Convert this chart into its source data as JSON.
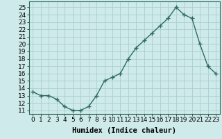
{
  "x": [
    0,
    1,
    2,
    3,
    4,
    5,
    6,
    7,
    8,
    9,
    10,
    11,
    12,
    13,
    14,
    15,
    16,
    17,
    18,
    19,
    20,
    21,
    22,
    23
  ],
  "y": [
    13.5,
    13.0,
    13.0,
    12.5,
    11.5,
    11.0,
    11.0,
    11.5,
    13.0,
    15.0,
    15.5,
    16.0,
    18.0,
    19.5,
    20.5,
    21.5,
    22.5,
    23.5,
    25.0,
    24.0,
    23.5,
    20.0,
    17.0,
    16.0
  ],
  "line_color": "#2e6b5e",
  "marker": "+",
  "marker_size": 4,
  "marker_edge_width": 1.0,
  "line_width": 1.0,
  "bg_color": "#ceeaea",
  "grid_color": "#aacece",
  "xlabel": "Humidex (Indice chaleur)",
  "xlabel_fontsize": 7.5,
  "ylabel_ticks": [
    11,
    12,
    13,
    14,
    15,
    16,
    17,
    18,
    19,
    20,
    21,
    22,
    23,
    24,
    25
  ],
  "xtick_labels": [
    "0",
    "1",
    "2",
    "3",
    "4",
    "5",
    "6",
    "7",
    "8",
    "9",
    "10",
    "11",
    "12",
    "13",
    "14",
    "15",
    "16",
    "17",
    "18",
    "19",
    "20",
    "21",
    "22",
    "23"
  ],
  "ylim": [
    10.5,
    25.8
  ],
  "xlim": [
    -0.5,
    23.5
  ],
  "tick_fontsize": 6.5
}
